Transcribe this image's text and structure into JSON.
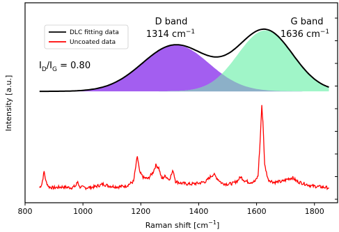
{
  "chart_data": {
    "type": "line",
    "xlabel": "Raman shift [cm",
    "xlabel_sup": "−1",
    "xlabel_end": "]",
    "ylabel": "Intensity [a.u.]",
    "xlim": [
      800,
      1880
    ],
    "x_ticks": [
      800,
      1000,
      1200,
      1400,
      1600,
      1800
    ],
    "grid": false,
    "legend": {
      "placement": "top-left",
      "entries": [
        {
          "label": "DLC fitting data",
          "color": "#000000"
        },
        {
          "label": "Uncoated data",
          "color": "#ff0000"
        }
      ]
    },
    "annotations": {
      "d_band_title": "D band",
      "d_band_value": "1314 cm",
      "d_band_sup": "−1",
      "g_band_title": "G band",
      "g_band_value": "1636 cm",
      "g_band_sup": "−1",
      "ratio_i": "I",
      "ratio_sub_d": "D",
      "ratio_slash": "/I",
      "ratio_sub_g": "G",
      "ratio_value": " = 0.80"
    },
    "colors": {
      "d_band_fill": "#a35ef0",
      "g_band_fill": "#a0f5c8",
      "overlap_fill": "#8cb0c8",
      "fit_line": "#000000",
      "uncoated_line": "#ff0000"
    },
    "dlc_fit": {
      "x_range": [
        850,
        1850
      ],
      "baseline": 0.02,
      "d_peak": {
        "center": 1320,
        "amplitude": 0.7,
        "sigma": 115
      },
      "g_peak": {
        "center": 1630,
        "amplitude": 0.92,
        "sigma": 95
      }
    },
    "uncoated": {
      "x_range": [
        850,
        1850
      ],
      "points": [
        [
          850,
          0.05
        ],
        [
          858,
          0.09
        ],
        [
          866,
          0.23
        ],
        [
          872,
          0.12
        ],
        [
          882,
          0.06
        ],
        [
          900,
          0.05
        ],
        [
          930,
          0.06
        ],
        [
          960,
          0.05
        ],
        [
          975,
          0.07
        ],
        [
          982,
          0.12
        ],
        [
          988,
          0.06
        ],
        [
          1010,
          0.05
        ],
        [
          1040,
          0.06
        ],
        [
          1070,
          0.09
        ],
        [
          1090,
          0.07
        ],
        [
          1120,
          0.06
        ],
        [
          1150,
          0.07
        ],
        [
          1175,
          0.12
        ],
        [
          1188,
          0.4
        ],
        [
          1196,
          0.22
        ],
        [
          1210,
          0.16
        ],
        [
          1225,
          0.15
        ],
        [
          1242,
          0.22
        ],
        [
          1252,
          0.3
        ],
        [
          1262,
          0.27
        ],
        [
          1272,
          0.15
        ],
        [
          1285,
          0.18
        ],
        [
          1298,
          0.14
        ],
        [
          1312,
          0.24
        ],
        [
          1320,
          0.12
        ],
        [
          1340,
          0.1
        ],
        [
          1370,
          0.09
        ],
        [
          1400,
          0.1
        ],
        [
          1425,
          0.12
        ],
        [
          1440,
          0.17
        ],
        [
          1452,
          0.2
        ],
        [
          1462,
          0.16
        ],
        [
          1480,
          0.1
        ],
        [
          1500,
          0.09
        ],
        [
          1520,
          0.1
        ],
        [
          1535,
          0.13
        ],
        [
          1545,
          0.17
        ],
        [
          1558,
          0.13
        ],
        [
          1575,
          0.11
        ],
        [
          1595,
          0.12
        ],
        [
          1605,
          0.18
        ],
        [
          1612,
          0.55
        ],
        [
          1618,
          0.95
        ],
        [
          1622,
          0.78
        ],
        [
          1628,
          0.3
        ],
        [
          1640,
          0.14
        ],
        [
          1660,
          0.11
        ],
        [
          1690,
          0.12
        ],
        [
          1710,
          0.15
        ],
        [
          1725,
          0.16
        ],
        [
          1740,
          0.12
        ],
        [
          1760,
          0.1
        ],
        [
          1790,
          0.07
        ],
        [
          1820,
          0.06
        ],
        [
          1850,
          0.05
        ]
      ]
    }
  }
}
